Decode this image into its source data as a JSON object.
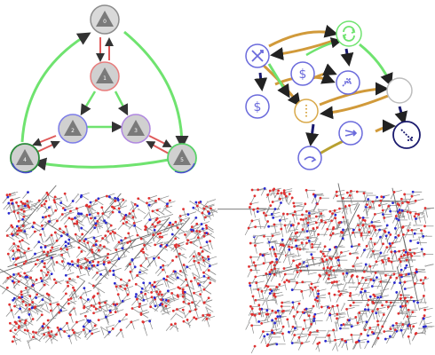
{
  "figure": {
    "panels": [
      "scheme-graph",
      "process-network",
      "lattice-structure-a",
      "lattice-structure-b"
    ]
  },
  "scheme_graph": {
    "nodes": [
      {
        "id": "top",
        "label": "0",
        "ring": "#8c8c8c"
      },
      {
        "id": "center-top",
        "label": "1",
        "ring": "#e87c7c"
      },
      {
        "id": "center-left",
        "label": "2",
        "ring": "#7c7ce8"
      },
      {
        "id": "center-right",
        "label": "3",
        "ring": "#b088e0"
      },
      {
        "id": "bottom-left",
        "label": "4",
        "ring": "#2d8a3d"
      },
      {
        "id": "bottom-right",
        "label": "5",
        "ring": "#5ad36a"
      }
    ],
    "colors": {
      "outer_arrow": "#6fe36f",
      "inner_red": "#e05a5a",
      "inner_green": "#6fe36f",
      "node_fill": "#c8c8c8",
      "triangle": "#7a7a7a"
    }
  },
  "process_network": {
    "nodes": [
      {
        "id": "n-flow-in",
        "icon": "crossed-arrows-icon",
        "ring": "#6b6bdc"
      },
      {
        "id": "n-sync",
        "icon": "cycle-arrows-icon",
        "ring": "#6fe36f"
      },
      {
        "id": "n-dollar-a",
        "icon": "dollar-icon",
        "ring": "#6b6bdc"
      },
      {
        "id": "n-dollar-b",
        "icon": "dollar-icon",
        "ring": "#6b6bdc"
      },
      {
        "id": "n-split",
        "icon": "split-arrow-icon",
        "ring": "#6b6bdc"
      },
      {
        "id": "n-dots",
        "icon": "dots-icon",
        "ring": "#d9a94a"
      },
      {
        "id": "n-empty",
        "icon": "",
        "ring": "#bdbdbd"
      },
      {
        "id": "n-fork",
        "icon": "fork-arrow-icon",
        "ring": "#6b6bdc"
      },
      {
        "id": "n-bend",
        "icon": "bend-arrow-icon",
        "ring": "#6b6bdc"
      },
      {
        "id": "n-diag",
        "icon": "diagonal-arrow-icon",
        "ring": "#1a1a6e"
      }
    ],
    "colors": {
      "tan_edge": "#d19a3a",
      "green_edge": "#6fe36f",
      "navy_edge": "#1a1a6e",
      "olive_edge": "#b8a030"
    }
  },
  "lattice": {
    "colors": {
      "bond": "#8a8a8a",
      "atom_red": "#e03030",
      "atom_blue": "#2a2ad0",
      "atom_grey": "#bdbdbd"
    }
  }
}
